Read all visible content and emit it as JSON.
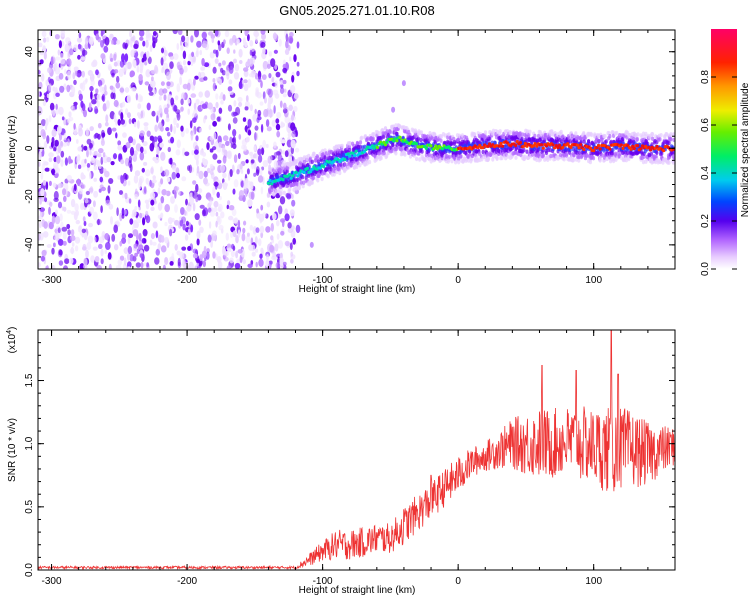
{
  "title": "GN05.2025.271.01.10.R08",
  "chart_data": [
    {
      "type": "heatmap",
      "xlabel": "Height of straight line (km)",
      "ylabel": "Frequency (Hz)",
      "xlim": [
        -310,
        160
      ],
      "ylim": [
        -50,
        49
      ],
      "xticks": [
        -300,
        -200,
        -100,
        0,
        100
      ],
      "xtick_labels": [
        "-300",
        "-200",
        "-100",
        "0",
        "100"
      ],
      "yticks": [
        -40,
        -20,
        0,
        20,
        40
      ],
      "ytick_labels": [
        "-40",
        "-20",
        "0",
        "20",
        "40"
      ],
      "colorbar": {
        "label": "Normalized spectral amplitude",
        "range": [
          0,
          1
        ],
        "ticks": [
          0.0,
          0.2,
          0.4,
          0.6,
          0.8
        ],
        "tick_labels": [
          "0.0",
          "0.2",
          "0.4",
          "0.6",
          "0.8"
        ]
      },
      "noise_region_x": [
        -310,
        -118
      ],
      "signal_trace": {
        "x": [
          -140,
          -125,
          -110,
          -95,
          -80,
          -65,
          -55,
          -45,
          -35,
          -25,
          -15,
          0,
          20,
          40,
          60,
          80,
          100,
          120,
          140,
          160
        ],
        "y": [
          -14,
          -12,
          -9,
          -6,
          -3,
          0,
          2,
          4,
          2,
          1,
          0,
          0,
          1,
          2,
          1,
          1,
          0,
          1,
          0,
          0
        ]
      }
    },
    {
      "type": "line",
      "xlabel": "Height of straight line (km)",
      "ylabel": "SNR (10 * v/v)",
      "yscale_label": "(x10",
      "yscale_exp": "4",
      "yscale_close": ")",
      "xlim": [
        -310,
        160
      ],
      "ylim": [
        0,
        1.9
      ],
      "xticks": [
        -300,
        -200,
        -100,
        0,
        100
      ],
      "xtick_labels": [
        "-300",
        "-200",
        "-100",
        "0",
        "100"
      ],
      "yticks": [
        0.0,
        0.5,
        1.0,
        1.5
      ],
      "ytick_labels": [
        "0.0",
        "0.5",
        "1.0",
        "1.5"
      ],
      "color": "#ee3333",
      "envelope": {
        "x": [
          -310,
          -120,
          -110,
          -100,
          -90,
          -80,
          -70,
          -60,
          -50,
          -40,
          -30,
          -20,
          -10,
          0,
          10,
          20,
          30,
          40,
          50,
          60,
          70,
          80,
          90,
          100,
          110,
          120,
          130,
          140,
          150,
          160
        ],
        "mean": [
          0.02,
          0.02,
          0.08,
          0.15,
          0.2,
          0.2,
          0.22,
          0.25,
          0.25,
          0.35,
          0.45,
          0.55,
          0.65,
          0.75,
          0.85,
          0.9,
          0.95,
          1.0,
          1.0,
          1.0,
          1.0,
          1.02,
          1.0,
          0.98,
          0.95,
          0.95,
          0.95,
          0.92,
          0.95,
          0.98
        ],
        "spread": [
          0.01,
          0.01,
          0.05,
          0.08,
          0.12,
          0.12,
          0.12,
          0.12,
          0.12,
          0.15,
          0.15,
          0.15,
          0.15,
          0.15,
          0.12,
          0.12,
          0.15,
          0.2,
          0.25,
          0.28,
          0.28,
          0.28,
          0.3,
          0.3,
          0.35,
          0.35,
          0.3,
          0.25,
          0.2,
          0.15
        ]
      },
      "peaks": [
        {
          "x": 113,
          "y": 1.9
        },
        {
          "x": 62,
          "y": 1.62
        },
        {
          "x": 87,
          "y": 1.58
        },
        {
          "x": 118,
          "y": 1.55
        },
        {
          "x": -20,
          "y": 0.75
        }
      ]
    }
  ]
}
